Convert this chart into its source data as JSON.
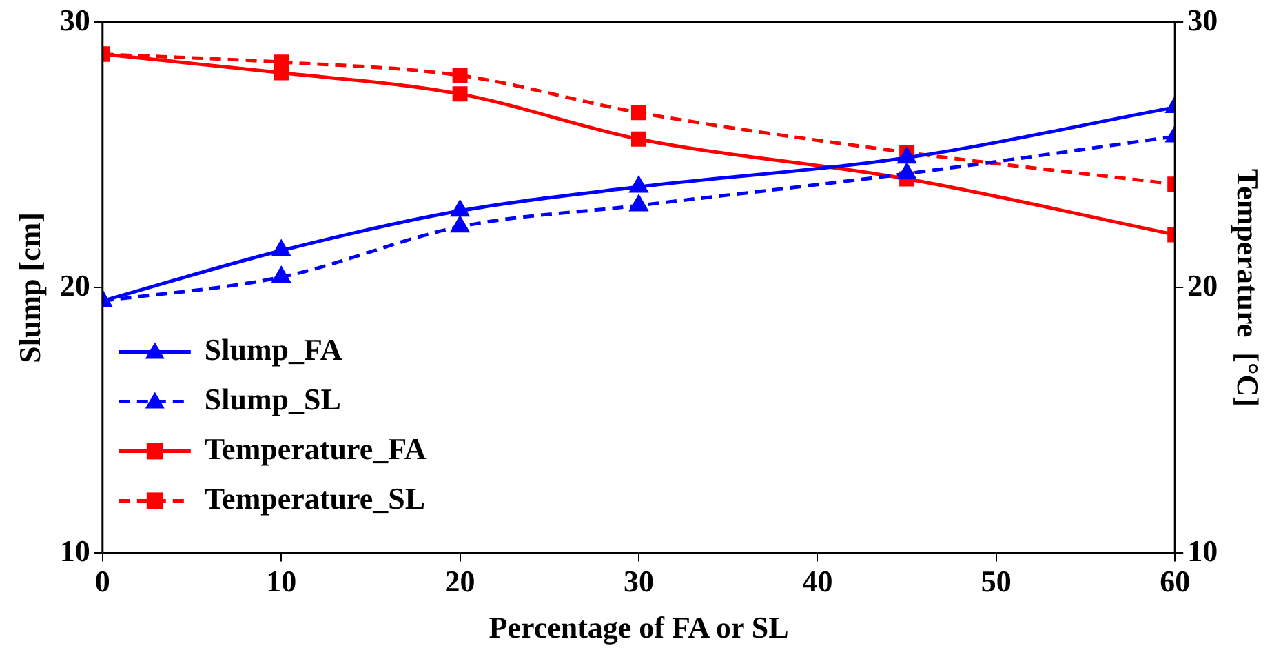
{
  "chart_data": {
    "type": "line",
    "xlabel": "Percentage of FA or SL",
    "ylabel": "Slump [cm]",
    "y2label": "Temperature  [°C]",
    "xlim": [
      0,
      60
    ],
    "xticks": [
      0,
      10,
      20,
      30,
      40,
      50,
      60
    ],
    "ylim": [
      10,
      30
    ],
    "yticks": [
      10,
      20,
      30
    ],
    "y2lim": [
      10,
      30
    ],
    "y2ticks": [
      10,
      20,
      30
    ],
    "grid": false,
    "legend": "bottom left",
    "series": [
      {
        "name": "Slump_FA",
        "color": "#0000ff",
        "x": [
          0,
          10,
          20,
          30,
          45,
          60
        ],
        "values": [
          19.5,
          21.4,
          22.9,
          23.8,
          24.9,
          26.8
        ],
        "marker": "triangle",
        "line_style": "solid"
      },
      {
        "name": "Slump_SL",
        "color": "#0000ff",
        "x": [
          0,
          10,
          20,
          30,
          45,
          60
        ],
        "values": [
          19.5,
          20.4,
          22.3,
          23.1,
          24.3,
          25.7
        ],
        "marker": "triangle",
        "line_style": "dashed"
      },
      {
        "name": "Temperature_FA",
        "color": "#ff0000",
        "x": [
          0,
          10,
          20,
          30,
          45,
          60
        ],
        "values": [
          28.8,
          28.1,
          27.3,
          25.6,
          24.1,
          22.0
        ],
        "marker": "square",
        "line_style": "solid",
        "axis": "y2"
      },
      {
        "name": "Temperature_SL",
        "color": "#ff0000",
        "x": [
          0,
          10,
          20,
          30,
          45,
          60
        ],
        "values": [
          28.8,
          28.5,
          28.0,
          26.6,
          25.1,
          23.9
        ],
        "marker": "square",
        "line_style": "dashed",
        "axis": "y2"
      }
    ]
  }
}
